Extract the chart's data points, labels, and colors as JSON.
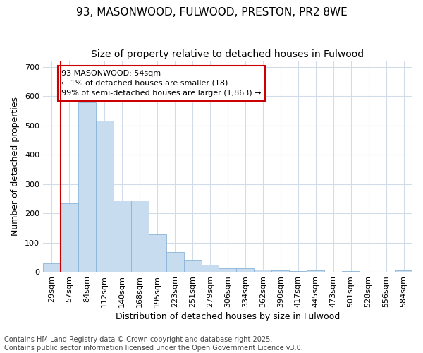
{
  "title_line1": "93, MASONWOOD, FULWOOD, PRESTON, PR2 8WE",
  "title_line2": "Size of property relative to detached houses in Fulwood",
  "xlabel": "Distribution of detached houses by size in Fulwood",
  "ylabel": "Number of detached properties",
  "categories": [
    "29sqm",
    "57sqm",
    "84sqm",
    "112sqm",
    "140sqm",
    "168sqm",
    "195sqm",
    "223sqm",
    "251sqm",
    "279sqm",
    "306sqm",
    "334sqm",
    "362sqm",
    "390sqm",
    "417sqm",
    "445sqm",
    "473sqm",
    "501sqm",
    "528sqm",
    "556sqm",
    "584sqm"
  ],
  "values": [
    28,
    234,
    580,
    517,
    243,
    243,
    128,
    68,
    40,
    25,
    12,
    13,
    8,
    5,
    3,
    5,
    0,
    3,
    0,
    0,
    5
  ],
  "bar_color": "#c8dcf0",
  "bar_edge_color": "#8ab4d8",
  "annotation_text": "93 MASONWOOD: 54sqm\n← 1% of detached houses are smaller (18)\n99% of semi-detached houses are larger (1,863) →",
  "annotation_box_color": "white",
  "annotation_box_edge_color": "#cc0000",
  "vline_color": "#cc0000",
  "vline_x": 0.5,
  "ylim": [
    0,
    720
  ],
  "yticks": [
    0,
    100,
    200,
    300,
    400,
    500,
    600,
    700
  ],
  "footer_line1": "Contains HM Land Registry data © Crown copyright and database right 2025.",
  "footer_line2": "Contains public sector information licensed under the Open Government Licence v3.0.",
  "bg_color": "#ffffff",
  "plot_bg_color": "#ffffff",
  "grid_color": "#d0dce8",
  "title_fontsize": 11,
  "subtitle_fontsize": 10,
  "axis_label_fontsize": 9,
  "tick_fontsize": 8,
  "footer_fontsize": 7,
  "annotation_fontsize": 8
}
